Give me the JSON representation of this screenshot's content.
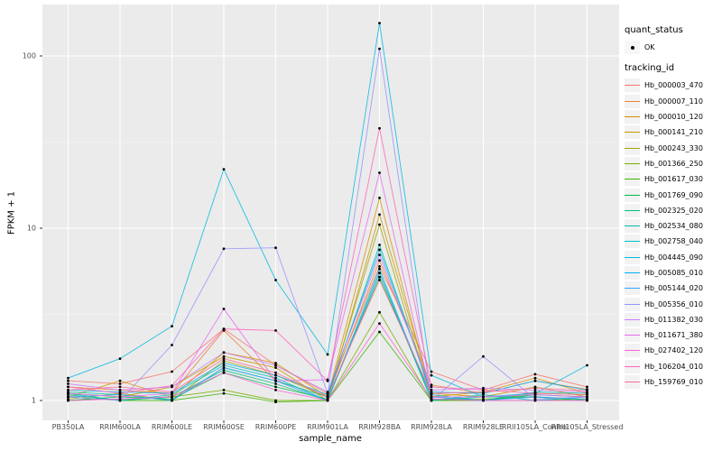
{
  "chart_data": {
    "type": "line",
    "title": "",
    "xlabel": "sample_name",
    "ylabel": "FPKM + 1",
    "y_scale": "log10",
    "y_ticks": [
      1,
      10,
      100
    ],
    "ylim": [
      0.93,
      170
    ],
    "grid": "on",
    "legend_position": "right",
    "categories": [
      "PB350LA",
      "RRIM600LA",
      "RRIM600LE",
      "RRIM600SE",
      "RRIM600PE",
      "RRIM901LA",
      "RRIM928BA",
      "RRIM928LA",
      "RRIM928LE",
      "RRII105LA_Control",
      "RRII105LA_Stressed"
    ],
    "series": [
      {
        "name": "Hb_000003_470",
        "color": "#F8766D",
        "values": [
          1.3,
          1.25,
          1.47,
          2.6,
          1.6,
          1.1,
          6.0,
          1.47,
          1.15,
          1.42,
          1.2
        ]
      },
      {
        "name": "Hb_000007_110",
        "color": "#EA8331",
        "values": [
          1.2,
          1.15,
          1.1,
          2.55,
          1.3,
          1.05,
          6.5,
          1.23,
          1.1,
          1.3,
          1.16
        ]
      },
      {
        "name": "Hb_000010_120",
        "color": "#D89000",
        "values": [
          1.05,
          1.3,
          1.05,
          1.9,
          1.65,
          1.05,
          15.0,
          1.05,
          1.12,
          1.35,
          1.1
        ]
      },
      {
        "name": "Hb_000141_210",
        "color": "#C49A00",
        "values": [
          1.1,
          1.05,
          1.2,
          1.8,
          1.55,
          1.0,
          12.0,
          1.1,
          1.05,
          1.2,
          1.05
        ]
      },
      {
        "name": "Hb_000243_330",
        "color": "#A3A500",
        "values": [
          1.02,
          1.1,
          1.0,
          1.7,
          1.4,
          1.05,
          10.5,
          1.02,
          1.0,
          1.1,
          1.08
        ]
      },
      {
        "name": "Hb_001366_250",
        "color": "#7CAE00",
        "values": [
          1.0,
          1.02,
          1.05,
          1.15,
          1.0,
          1.0,
          3.25,
          1.0,
          1.02,
          1.05,
          1.0
        ]
      },
      {
        "name": "Hb_001617_030",
        "color": "#39B600",
        "values": [
          1.05,
          1.0,
          1.0,
          1.1,
          0.98,
          1.0,
          2.5,
          1.0,
          1.0,
          1.0,
          1.02
        ]
      },
      {
        "name": "Hb_001769_090",
        "color": "#00BB4E",
        "values": [
          1.0,
          1.05,
          1.02,
          1.45,
          1.2,
          1.02,
          5.2,
          1.05,
          1.0,
          1.08,
          1.05
        ]
      },
      {
        "name": "Hb_002325_020",
        "color": "#00BF7D",
        "values": [
          1.08,
          1.0,
          1.05,
          1.5,
          1.25,
          1.0,
          5.5,
          1.0,
          1.05,
          1.05,
          1.0
        ]
      },
      {
        "name": "Hb_002534_080",
        "color": "#00C1A3",
        "values": [
          1.12,
          1.08,
          1.0,
          1.55,
          1.3,
          1.05,
          8.0,
          1.08,
          1.0,
          1.12,
          1.1
        ]
      },
      {
        "name": "Hb_002758_040",
        "color": "#00BFC4",
        "values": [
          1.1,
          1.0,
          1.08,
          1.6,
          1.35,
          1.0,
          5.8,
          1.0,
          1.08,
          1.0,
          1.05
        ]
      },
      {
        "name": "Hb_004445_090",
        "color": "#00BAE0",
        "values": [
          1.35,
          1.75,
          2.7,
          22.0,
          5.0,
          1.85,
          155.0,
          1.4,
          1.05,
          1.1,
          1.6
        ]
      },
      {
        "name": "Hb_005085_010",
        "color": "#00B0F6",
        "values": [
          1.15,
          1.12,
          1.1,
          1.65,
          1.4,
          1.08,
          7.5,
          1.12,
          1.1,
          1.3,
          1.15
        ]
      },
      {
        "name": "Hb_005144_020",
        "color": "#35A2FF",
        "values": [
          1.05,
          1.08,
          1.0,
          1.55,
          1.3,
          1.0,
          5.5,
          1.05,
          1.0,
          1.05,
          1.02
        ]
      },
      {
        "name": "Hb_005356_010",
        "color": "#9590FF",
        "values": [
          1.05,
          1.0,
          2.1,
          7.6,
          7.7,
          1.1,
          110.0,
          1.0,
          1.8,
          1.02,
          1.05
        ]
      },
      {
        "name": "Hb_011382_030",
        "color": "#C77CFF",
        "values": [
          1.25,
          1.15,
          1.2,
          1.9,
          1.6,
          1.12,
          7.0,
          1.15,
          1.18,
          1.15,
          1.12
        ]
      },
      {
        "name": "Hb_011671_380",
        "color": "#E76BF3",
        "values": [
          1.1,
          1.05,
          1.1,
          3.4,
          1.3,
          1.32,
          21.0,
          1.05,
          1.05,
          1.08,
          1.05
        ]
      },
      {
        "name": "Hb_027402_120",
        "color": "#FA62DB",
        "values": [
          1.0,
          1.02,
          1.05,
          1.45,
          1.15,
          1.0,
          2.8,
          1.02,
          1.0,
          1.0,
          1.0
        ]
      },
      {
        "name": "Hb_106204_010",
        "color": "#FF62BC",
        "values": [
          1.2,
          1.1,
          1.22,
          2.6,
          2.55,
          1.3,
          38.0,
          1.2,
          1.15,
          1.1,
          1.08
        ]
      },
      {
        "name": "Hb_159769_010",
        "color": "#FF6A98",
        "values": [
          1.15,
          1.2,
          1.12,
          1.75,
          1.45,
          1.05,
          5.0,
          1.1,
          1.12,
          1.18,
          1.14
        ]
      }
    ]
  },
  "legend": {
    "quant_title": "quant_status",
    "quant_items": [
      {
        "label": "OK",
        "marker": "black-point"
      }
    ],
    "tracking_title": "tracking_id"
  },
  "colors": {
    "panel_bg": "#EBEBEB",
    "grid_major": "#FFFFFF",
    "grid_minor": "#F5F5F5",
    "tick_text": "#4D4D4D",
    "tick_mark": "#333333",
    "point": "#000000",
    "legend_key_bg": "#F2F2F2"
  }
}
